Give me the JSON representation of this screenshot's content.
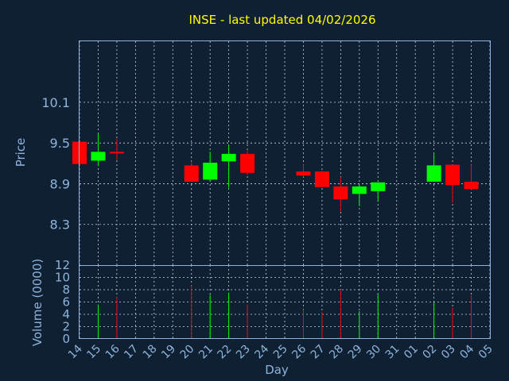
{
  "chart_data": [
    {
      "type": "candlestick",
      "title": "INSE - last updated 04/02/2026",
      "ylabel": "Price",
      "xlabel": "Day",
      "ylim": [
        7.7,
        11.0
      ],
      "yticks": [
        "8.3",
        "8.9",
        "9.5",
        "10.1"
      ],
      "up_color": "#00ff00",
      "down_color": "#ff0000",
      "grid": true,
      "x_ticks": [
        "14",
        "15",
        "16",
        "17",
        "18",
        "19",
        "20",
        "21",
        "22",
        "23",
        "24",
        "25",
        "26",
        "27",
        "28",
        "29",
        "30",
        "31",
        "01",
        "02",
        "03",
        "04",
        "05"
      ],
      "candles": [
        {
          "x": "14",
          "open": 9.52,
          "high": 9.52,
          "low": 9.19,
          "close": 9.19
        },
        {
          "x": "15",
          "open": 9.24,
          "high": 9.64,
          "low": 9.16,
          "close": 9.37
        },
        {
          "x": "16",
          "open": 9.37,
          "high": 9.56,
          "low": 9.25,
          "close": 9.35
        },
        {
          "x": "20",
          "open": 9.17,
          "high": 9.23,
          "low": 8.94,
          "close": 8.93
        },
        {
          "x": "21",
          "open": 8.96,
          "high": 9.37,
          "low": 8.93,
          "close": 9.21
        },
        {
          "x": "22",
          "open": 9.23,
          "high": 9.47,
          "low": 8.84,
          "close": 9.34
        },
        {
          "x": "23",
          "open": 9.34,
          "high": 9.4,
          "low": 9.03,
          "close": 9.06
        },
        {
          "x": "26",
          "open": 9.08,
          "high": 9.18,
          "low": 9.0,
          "close": 9.02
        },
        {
          "x": "27",
          "open": 9.08,
          "high": 9.09,
          "low": 8.85,
          "close": 8.85
        },
        {
          "x": "28",
          "open": 8.86,
          "high": 9.0,
          "low": 8.49,
          "close": 8.67
        },
        {
          "x": "29",
          "open": 8.75,
          "high": 8.87,
          "low": 8.57,
          "close": 8.86
        },
        {
          "x": "30",
          "open": 8.79,
          "high": 8.92,
          "low": 8.64,
          "close": 8.92
        },
        {
          "x": "02",
          "open": 8.93,
          "high": 9.35,
          "low": 8.93,
          "close": 9.17
        },
        {
          "x": "03",
          "open": 9.18,
          "high": 9.18,
          "low": 8.62,
          "close": 8.88
        },
        {
          "x": "04",
          "open": 8.93,
          "high": 9.18,
          "low": 8.82,
          "close": 8.82
        }
      ]
    },
    {
      "type": "bar",
      "ylabel": "Volume (0000)",
      "ylim": [
        0,
        12
      ],
      "yticks": [
        "0",
        "2",
        "4",
        "6",
        "8",
        "10",
        "12"
      ],
      "volumes": [
        {
          "x": "15",
          "value": 5.6,
          "color": "#00ff00"
        },
        {
          "x": "16",
          "value": 6.8,
          "color": "#ff0000"
        },
        {
          "x": "20",
          "value": 8.7,
          "color": "#ff0000"
        },
        {
          "x": "21",
          "value": 7.2,
          "color": "#00ff00"
        },
        {
          "x": "22",
          "value": 7.5,
          "color": "#00ff00"
        },
        {
          "x": "23",
          "value": 5.6,
          "color": "#ff0000"
        },
        {
          "x": "26",
          "value": 4.8,
          "color": "#ff0000"
        },
        {
          "x": "27",
          "value": 4.4,
          "color": "#ff0000"
        },
        {
          "x": "28",
          "value": 8.0,
          "color": "#ff0000"
        },
        {
          "x": "29",
          "value": 4.5,
          "color": "#00ff00"
        },
        {
          "x": "30",
          "value": 7.3,
          "color": "#00ff00"
        },
        {
          "x": "02",
          "value": 6.0,
          "color": "#00ff00"
        },
        {
          "x": "03",
          "value": 5.1,
          "color": "#ff0000"
        },
        {
          "x": "04",
          "value": 7.1,
          "color": "#ff0000"
        }
      ]
    }
  ]
}
